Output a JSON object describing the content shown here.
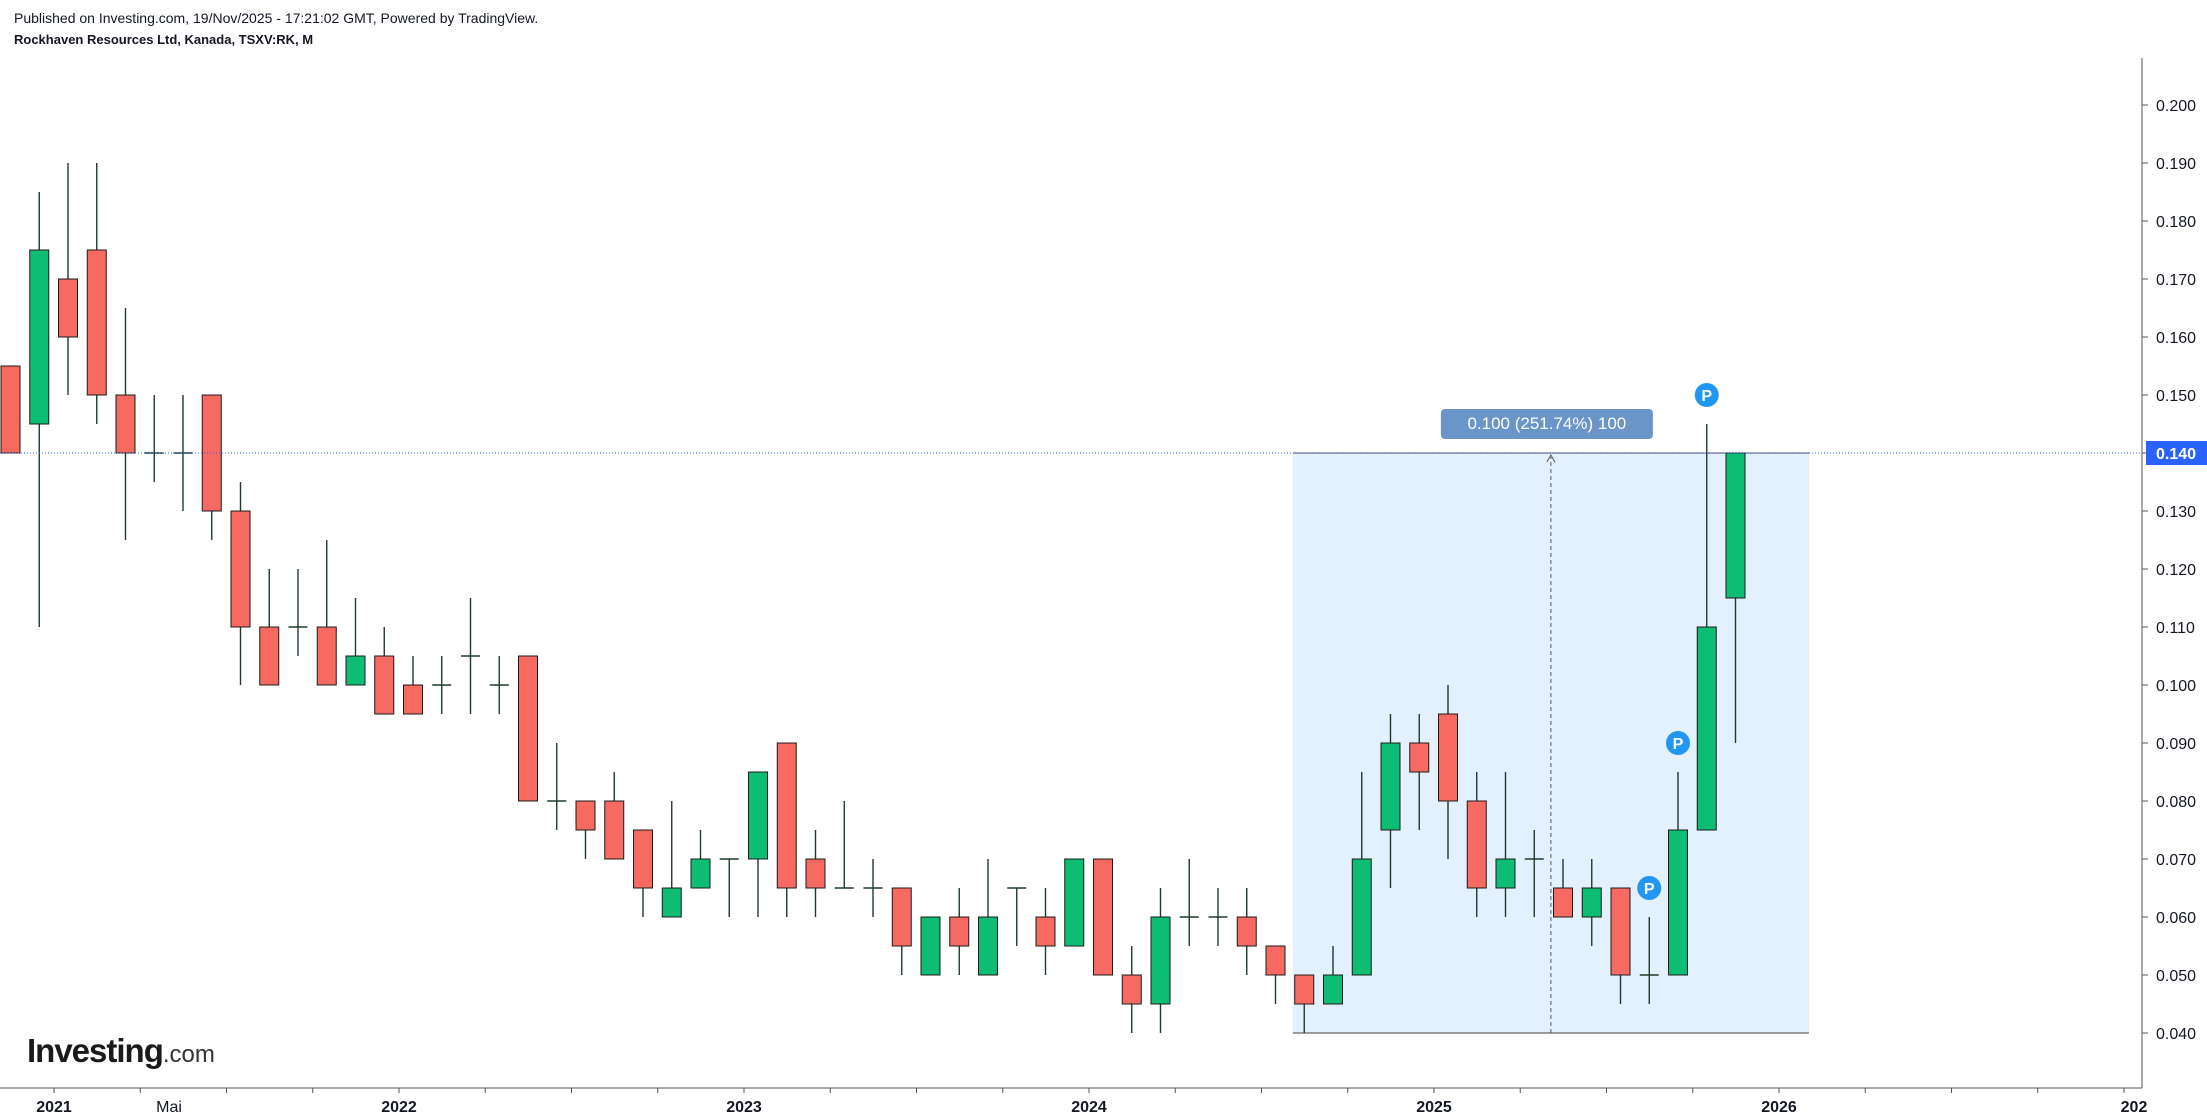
{
  "header": {
    "published": "Published on Investing.com, 19/Nov/2025 - 17:21:02 GMT, Powered by TradingView.",
    "symbol": "Rockhaven Resources Ltd, Kanada, TSXV:RK, M"
  },
  "logo": {
    "brand": "Investing",
    "suffix": ".com"
  },
  "colors": {
    "up": "#0ebd74",
    "down": "#f66a62",
    "wick": "#1d3b2a",
    "measure_fill": "#e3f0fd",
    "price_line": "#2962ff",
    "price_tag": "#2962ff",
    "measure_label": "#6a95c8",
    "marker": "#2196f3"
  },
  "chart_data": {
    "type": "candlestick",
    "interval": "M",
    "ylim": [
      0.033,
      0.207
    ],
    "yticks": [
      "0.040",
      "0.050",
      "0.060",
      "0.070",
      "0.080",
      "0.090",
      "0.100",
      "0.110",
      "0.120",
      "0.130",
      "0.140",
      "0.150",
      "0.160",
      "0.170",
      "0.180",
      "0.190",
      "0.200"
    ],
    "xticks": [
      {
        "label": "2021",
        "index": 2,
        "major": true
      },
      {
        "label": "Mai",
        "index": 6,
        "major": false
      },
      {
        "label": "2022",
        "index": 14,
        "major": true
      },
      {
        "label": "2023",
        "index": 26,
        "major": true
      },
      {
        "label": "2024",
        "index": 38,
        "major": true
      },
      {
        "label": "2025",
        "index": 50,
        "major": true
      },
      {
        "label": "2026",
        "index": 62,
        "major": true
      },
      {
        "label": "202",
        "index": 74,
        "major": true
      }
    ],
    "candles": [
      {
        "o": 0.155,
        "h": 0.155,
        "l": 0.14,
        "c": 0.14
      },
      {
        "o": 0.145,
        "h": 0.185,
        "l": 0.11,
        "c": 0.175
      },
      {
        "o": 0.17,
        "h": 0.19,
        "l": 0.15,
        "c": 0.16
      },
      {
        "o": 0.175,
        "h": 0.19,
        "l": 0.145,
        "c": 0.15
      },
      {
        "o": 0.15,
        "h": 0.165,
        "l": 0.125,
        "c": 0.14
      },
      {
        "o": 0.14,
        "h": 0.15,
        "l": 0.135,
        "c": 0.14
      },
      {
        "o": 0.14,
        "h": 0.15,
        "l": 0.13,
        "c": 0.14
      },
      {
        "o": 0.15,
        "h": 0.15,
        "l": 0.125,
        "c": 0.13
      },
      {
        "o": 0.13,
        "h": 0.135,
        "l": 0.1,
        "c": 0.11
      },
      {
        "o": 0.11,
        "h": 0.12,
        "l": 0.1,
        "c": 0.1
      },
      {
        "o": 0.11,
        "h": 0.12,
        "l": 0.105,
        "c": 0.11
      },
      {
        "o": 0.11,
        "h": 0.125,
        "l": 0.1,
        "c": 0.1
      },
      {
        "o": 0.1,
        "h": 0.115,
        "l": 0.1,
        "c": 0.105
      },
      {
        "o": 0.105,
        "h": 0.11,
        "l": 0.095,
        "c": 0.095
      },
      {
        "o": 0.1,
        "h": 0.105,
        "l": 0.095,
        "c": 0.095
      },
      {
        "o": 0.1,
        "h": 0.105,
        "l": 0.095,
        "c": 0.1
      },
      {
        "o": 0.105,
        "h": 0.115,
        "l": 0.095,
        "c": 0.105
      },
      {
        "o": 0.1,
        "h": 0.105,
        "l": 0.095,
        "c": 0.1
      },
      {
        "o": 0.105,
        "h": 0.105,
        "l": 0.08,
        "c": 0.08
      },
      {
        "o": 0.08,
        "h": 0.09,
        "l": 0.075,
        "c": 0.08
      },
      {
        "o": 0.08,
        "h": 0.08,
        "l": 0.07,
        "c": 0.075
      },
      {
        "o": 0.08,
        "h": 0.085,
        "l": 0.07,
        "c": 0.07
      },
      {
        "o": 0.075,
        "h": 0.075,
        "l": 0.06,
        "c": 0.065
      },
      {
        "o": 0.06,
        "h": 0.08,
        "l": 0.06,
        "c": 0.065
      },
      {
        "o": 0.065,
        "h": 0.075,
        "l": 0.065,
        "c": 0.07
      },
      {
        "o": 0.07,
        "h": 0.07,
        "l": 0.06,
        "c": 0.07
      },
      {
        "o": 0.07,
        "h": 0.085,
        "l": 0.06,
        "c": 0.085
      },
      {
        "o": 0.09,
        "h": 0.09,
        "l": 0.06,
        "c": 0.065
      },
      {
        "o": 0.07,
        "h": 0.075,
        "l": 0.06,
        "c": 0.065
      },
      {
        "o": 0.065,
        "h": 0.08,
        "l": 0.065,
        "c": 0.065
      },
      {
        "o": 0.065,
        "h": 0.07,
        "l": 0.06,
        "c": 0.065
      },
      {
        "o": 0.065,
        "h": 0.065,
        "l": 0.05,
        "c": 0.055
      },
      {
        "o": 0.05,
        "h": 0.06,
        "l": 0.05,
        "c": 0.06
      },
      {
        "o": 0.06,
        "h": 0.065,
        "l": 0.05,
        "c": 0.055
      },
      {
        "o": 0.05,
        "h": 0.07,
        "l": 0.05,
        "c": 0.06
      },
      {
        "o": 0.065,
        "h": 0.065,
        "l": 0.055,
        "c": 0.065
      },
      {
        "o": 0.06,
        "h": 0.065,
        "l": 0.05,
        "c": 0.055
      },
      {
        "o": 0.055,
        "h": 0.07,
        "l": 0.055,
        "c": 0.07
      },
      {
        "o": 0.07,
        "h": 0.07,
        "l": 0.05,
        "c": 0.05
      },
      {
        "o": 0.05,
        "h": 0.055,
        "l": 0.04,
        "c": 0.045
      },
      {
        "o": 0.045,
        "h": 0.065,
        "l": 0.04,
        "c": 0.06
      },
      {
        "o": 0.06,
        "h": 0.07,
        "l": 0.055,
        "c": 0.06
      },
      {
        "o": 0.06,
        "h": 0.065,
        "l": 0.055,
        "c": 0.06
      },
      {
        "o": 0.06,
        "h": 0.065,
        "l": 0.05,
        "c": 0.055
      },
      {
        "o": 0.055,
        "h": 0.055,
        "l": 0.045,
        "c": 0.05
      },
      {
        "o": 0.05,
        "h": 0.05,
        "l": 0.04,
        "c": 0.045
      },
      {
        "o": 0.045,
        "h": 0.055,
        "l": 0.045,
        "c": 0.05
      },
      {
        "o": 0.05,
        "h": 0.085,
        "l": 0.05,
        "c": 0.07
      },
      {
        "o": 0.075,
        "h": 0.095,
        "l": 0.065,
        "c": 0.09
      },
      {
        "o": 0.09,
        "h": 0.095,
        "l": 0.075,
        "c": 0.085
      },
      {
        "o": 0.095,
        "h": 0.1,
        "l": 0.07,
        "c": 0.08
      },
      {
        "o": 0.08,
        "h": 0.085,
        "l": 0.06,
        "c": 0.065
      },
      {
        "o": 0.065,
        "h": 0.085,
        "l": 0.06,
        "c": 0.07
      },
      {
        "o": 0.07,
        "h": 0.075,
        "l": 0.06,
        "c": 0.07
      },
      {
        "o": 0.065,
        "h": 0.07,
        "l": 0.06,
        "c": 0.06
      },
      {
        "o": 0.06,
        "h": 0.07,
        "l": 0.055,
        "c": 0.065
      },
      {
        "o": 0.065,
        "h": 0.065,
        "l": 0.045,
        "c": 0.05
      },
      {
        "o": 0.05,
        "h": 0.06,
        "l": 0.045,
        "c": 0.05
      },
      {
        "o": 0.05,
        "h": 0.085,
        "l": 0.05,
        "c": 0.075
      },
      {
        "o": 0.075,
        "h": 0.145,
        "l": 0.075,
        "c": 0.11
      },
      {
        "o": 0.115,
        "h": 0.14,
        "l": 0.09,
        "c": 0.14
      }
    ],
    "current_price": "0.140",
    "measure": {
      "label": "0.100 (251.74%) 100",
      "from_index": 45,
      "to_index": 62,
      "low": 0.04,
      "high": 0.14
    },
    "markers": [
      {
        "label": "P",
        "index": 57,
        "price": 0.065
      },
      {
        "label": "P",
        "index": 58,
        "price": 0.09
      },
      {
        "label": "P",
        "index": 59,
        "price": 0.15
      }
    ]
  }
}
